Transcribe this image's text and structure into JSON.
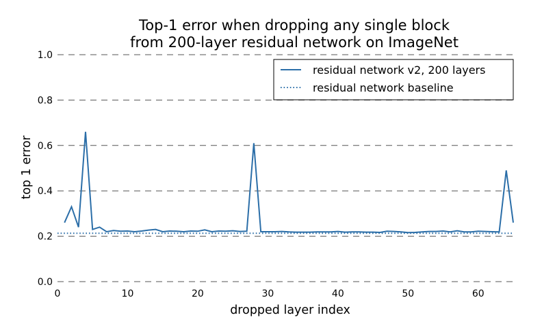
{
  "chart_data": {
    "type": "line",
    "title_line1": "Top-1 error when dropping any single block",
    "title_line2": "from 200-layer residual network on ImageNet",
    "xlabel": "dropped layer index",
    "ylabel": "top 1 error",
    "xlim": [
      0,
      65
    ],
    "ylim": [
      0,
      1.0
    ],
    "x_ticks": [
      0,
      10,
      20,
      30,
      40,
      50,
      60
    ],
    "y_ticks": [
      0.0,
      0.2,
      0.4,
      0.6,
      0.8,
      1.0
    ],
    "y_tick_labels": [
      "0.0",
      "0.2",
      "0.4",
      "0.6",
      "0.8",
      "1.0"
    ],
    "grid": "horizontal dashed",
    "legend_position": "top-right",
    "colors": {
      "series": "#2b6ea8",
      "grid": "#555555"
    },
    "series": [
      {
        "name": "residual network v2, 200 layers",
        "style": "solid",
        "x": [
          1,
          2,
          3,
          4,
          5,
          6,
          7,
          8,
          9,
          10,
          11,
          12,
          13,
          14,
          15,
          16,
          17,
          18,
          19,
          20,
          21,
          22,
          23,
          24,
          25,
          26,
          27,
          28,
          29,
          30,
          31,
          32,
          33,
          34,
          35,
          36,
          37,
          38,
          39,
          40,
          41,
          42,
          43,
          44,
          45,
          46,
          47,
          48,
          49,
          50,
          51,
          52,
          53,
          54,
          55,
          56,
          57,
          58,
          59,
          60,
          61,
          62,
          63,
          64,
          65
        ],
        "values": [
          0.26,
          0.33,
          0.24,
          0.66,
          0.23,
          0.24,
          0.22,
          0.225,
          0.222,
          0.223,
          0.22,
          0.223,
          0.227,
          0.23,
          0.22,
          0.223,
          0.222,
          0.22,
          0.223,
          0.222,
          0.228,
          0.22,
          0.223,
          0.222,
          0.224,
          0.221,
          0.222,
          0.61,
          0.22,
          0.22,
          0.22,
          0.221,
          0.219,
          0.218,
          0.218,
          0.218,
          0.219,
          0.219,
          0.219,
          0.221,
          0.218,
          0.219,
          0.219,
          0.218,
          0.218,
          0.217,
          0.222,
          0.221,
          0.219,
          0.216,
          0.217,
          0.219,
          0.221,
          0.221,
          0.223,
          0.219,
          0.224,
          0.219,
          0.219,
          0.222,
          0.221,
          0.22,
          0.219,
          0.49,
          0.26
        ]
      },
      {
        "name": "residual network baseline",
        "style": "dotted",
        "constant": 0.213
      }
    ]
  }
}
